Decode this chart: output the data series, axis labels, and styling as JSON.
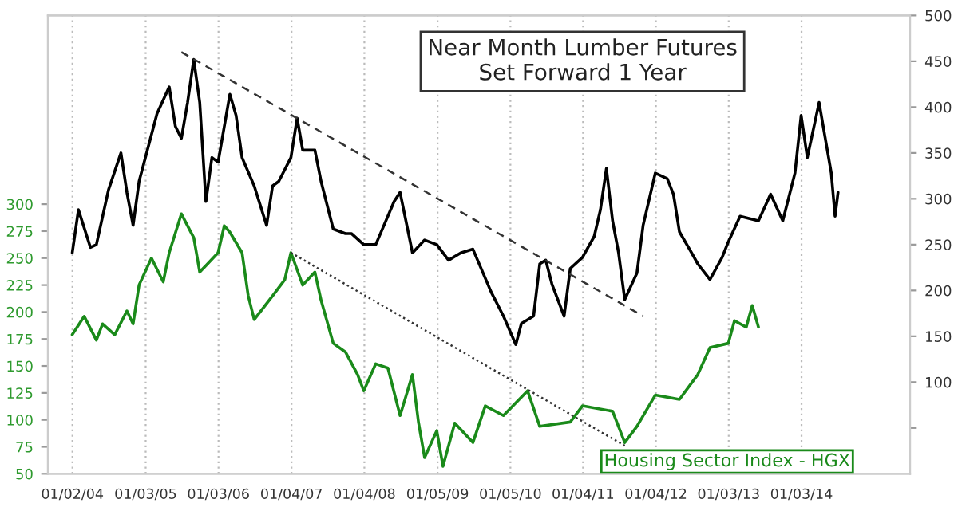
{
  "chart_data": {
    "type": "line",
    "xlim": [
      "2003-09",
      "2015-07"
    ],
    "xticks": [
      {
        "value": "2004-01-02",
        "label": "01/02/04"
      },
      {
        "value": "2005-01-03",
        "label": "01/03/05"
      },
      {
        "value": "2006-01-03",
        "label": "01/03/06"
      },
      {
        "value": "2007-01-04",
        "label": "01/04/07"
      },
      {
        "value": "2008-01-04",
        "label": "01/04/08"
      },
      {
        "value": "2009-01-05",
        "label": "01/05/09"
      },
      {
        "value": "2010-01-05",
        "label": "01/05/10"
      },
      {
        "value": "2011-01-04",
        "label": "01/04/11"
      },
      {
        "value": "2012-01-04",
        "label": "01/04/12"
      },
      {
        "value": "2013-01-03",
        "label": "01/03/13"
      },
      {
        "value": "2014-01-03",
        "label": "01/03/14"
      }
    ],
    "ylim": [
      50,
      475
    ],
    "yticks": [
      50,
      75,
      100,
      125,
      150,
      175,
      200,
      225,
      250,
      275,
      300
    ],
    "y2lim": [
      0,
      500
    ],
    "y2ticks": [
      {
        "value": 50,
        "label": null
      },
      100,
      150,
      200,
      250,
      300,
      350,
      400,
      450,
      500
    ],
    "grid": "x",
    "line_style": "solid",
    "marker": "none",
    "series": [
      {
        "name": "Housing Sector Index - HGX",
        "color": "#1a8a1a",
        "axis": "y",
        "x": [
          "2004-01",
          "2004-03",
          "2004-05",
          "2004-06",
          "2004-08",
          "2004-10",
          "2004-11",
          "2004-12",
          "2005-02",
          "2005-04",
          "2005-05",
          "2005-07",
          "2005-09",
          "2005-10",
          "2006-01",
          "2006-02",
          "2006-03",
          "2006-05",
          "2006-06",
          "2006-07",
          "2006-10",
          "2006-12",
          "2007-01",
          "2007-03",
          "2007-05",
          "2007-06",
          "2007-08",
          "2007-10",
          "2007-12",
          "2008-01",
          "2008-03",
          "2008-05",
          "2008-07",
          "2008-09",
          "2008-10",
          "2008-11",
          "2009-01",
          "2009-02",
          "2009-04",
          "2009-07",
          "2009-09",
          "2009-12",
          "2010-04",
          "2010-06",
          "2010-11",
          "2011-01",
          "2011-06",
          "2011-08",
          "2011-10",
          "2012-01",
          "2012-05",
          "2012-08",
          "2012-10",
          "2013-01",
          "2013-02",
          "2013-04",
          "2013-05",
          "2013-06"
        ],
        "values": [
          179,
          196,
          174,
          189,
          179,
          201,
          189,
          225,
          250,
          228,
          255,
          291,
          269,
          237,
          255,
          280,
          274,
          255,
          215,
          193,
          215,
          230,
          255,
          225,
          237,
          211,
          171,
          163,
          142,
          127,
          152,
          148,
          104,
          142,
          98,
          65,
          90,
          57,
          97,
          79,
          113,
          104,
          127,
          94,
          98,
          113,
          108,
          79,
          94,
          123,
          119,
          142,
          167,
          171,
          192,
          186,
          206,
          186
        ]
      },
      {
        "name": "Near Month Lumber Futures\nSet Forward 1 Year",
        "color": "#000000",
        "axis": "y2",
        "x": [
          "2004-01",
          "2004-02",
          "2004-04",
          "2004-05",
          "2004-07",
          "2004-09",
          "2004-10",
          "2004-11",
          "2004-12",
          "2005-03",
          "2005-05",
          "2005-06",
          "2005-07",
          "2005-08",
          "2005-09",
          "2005-10",
          "2005-11",
          "2005-12",
          "2006-01",
          "2006-03",
          "2006-04",
          "2006-05",
          "2006-07",
          "2006-09",
          "2006-10",
          "2006-11",
          "2007-01",
          "2007-02",
          "2007-03",
          "2007-05",
          "2007-06",
          "2007-08",
          "2007-10",
          "2007-11",
          "2008-01",
          "2008-03",
          "2008-06",
          "2008-07",
          "2008-09",
          "2008-11",
          "2009-01",
          "2009-02",
          "2009-03",
          "2009-05",
          "2009-07",
          "2009-10",
          "2009-12",
          "2010-02",
          "2010-03",
          "2010-05",
          "2010-06",
          "2010-07",
          "2010-08",
          "2010-10",
          "2010-11",
          "2011-01",
          "2011-03",
          "2011-04",
          "2011-05",
          "2011-06",
          "2011-07",
          "2011-08",
          "2011-10",
          "2011-11",
          "2012-01",
          "2012-03",
          "2012-04",
          "2012-05",
          "2012-07",
          "2012-08",
          "2012-10",
          "2012-12",
          "2013-01",
          "2013-03",
          "2013-06",
          "2013-08",
          "2013-10",
          "2013-12",
          "2014-01",
          "2014-02",
          "2014-04",
          "2014-05",
          "2014-06",
          "2014-06-20",
          "2014-07-05"
        ],
        "values": [
          241,
          288,
          247,
          250,
          310,
          350,
          307,
          271,
          319,
          393,
          422,
          379,
          366,
          405,
          452,
          405,
          297,
          345,
          340,
          414,
          391,
          345,
          314,
          271,
          314,
          319,
          345,
          388,
          353,
          353,
          319,
          267,
          262,
          262,
          250,
          250,
          297,
          307,
          241,
          255,
          250,
          241,
          233,
          241,
          245,
          198,
          172,
          141,
          164,
          172,
          229,
          233,
          207,
          172,
          224,
          236,
          259,
          288,
          333,
          276,
          241,
          190,
          219,
          271,
          328,
          322,
          305,
          264,
          241,
          229,
          212,
          236,
          253,
          281,
          276,
          305,
          276,
          328,
          391,
          345,
          405,
          367,
          328,
          281,
          307
        ]
      },
      {
        "type": "line",
        "color": "#333333",
        "axis": "y2",
        "line_style": "dashed",
        "x": [
          "2005-07",
          "2011-11"
        ],
        "values": [
          460,
          172
        ]
      },
      {
        "type": "line",
        "color": "#333333",
        "axis": "y",
        "line_style": "dotted",
        "x": [
          "2007-01",
          "2011-08"
        ],
        "values": [
          255,
          76
        ]
      }
    ]
  }
}
